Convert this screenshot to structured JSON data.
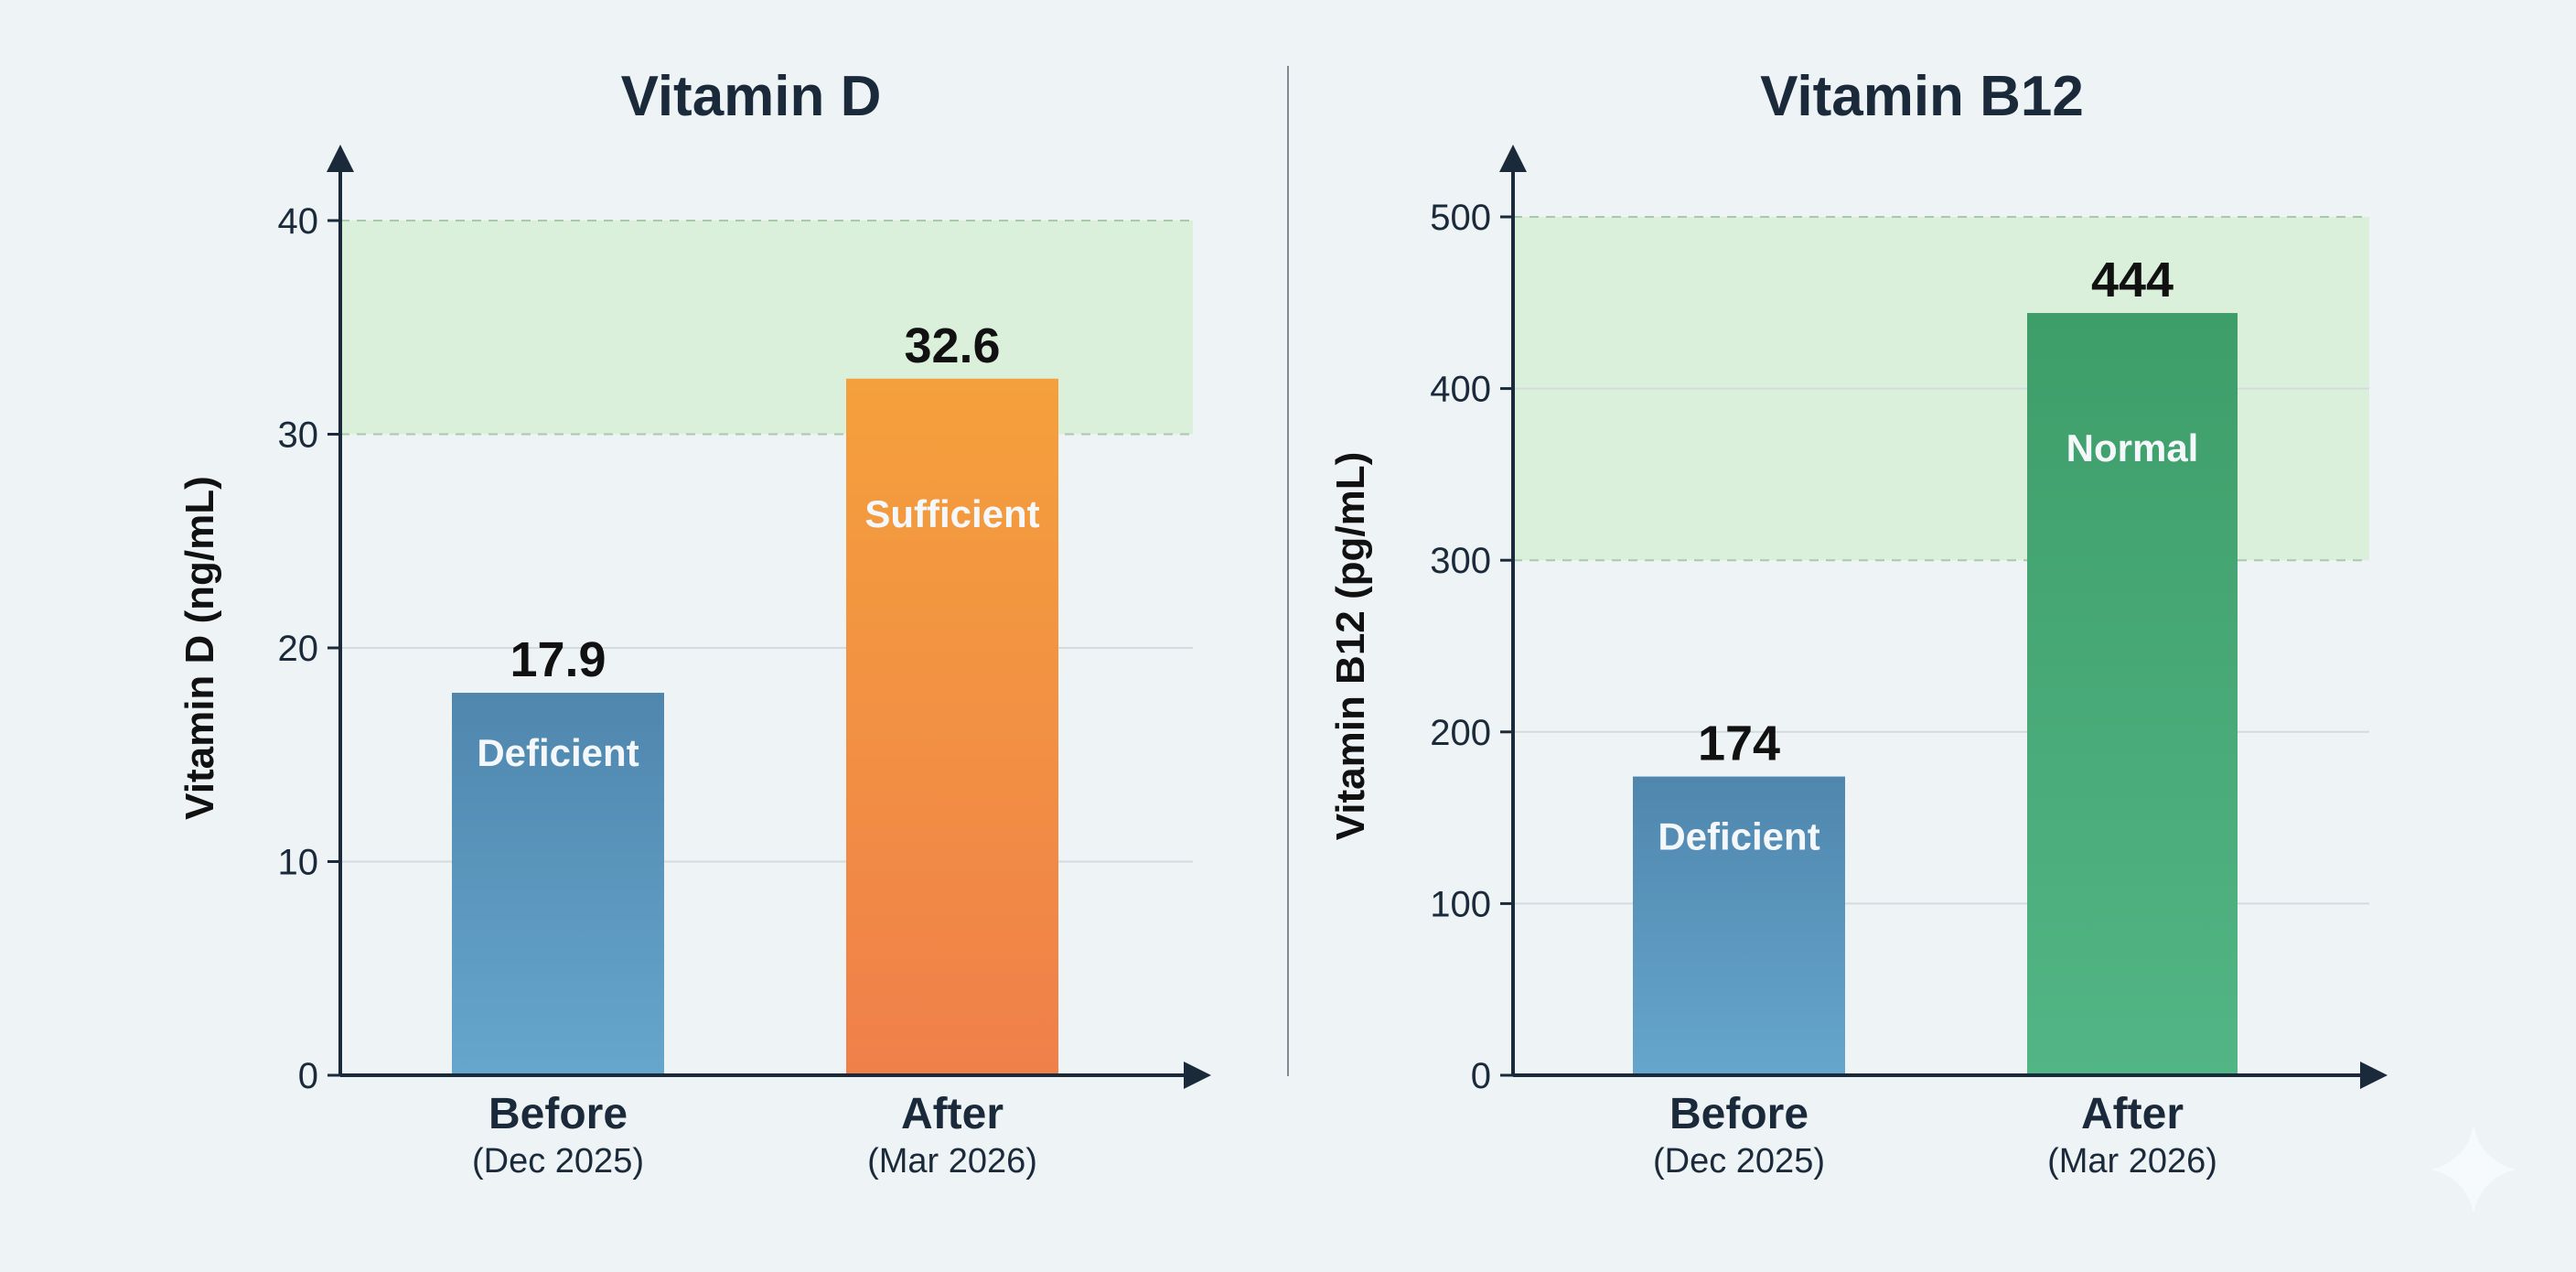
{
  "chart_data": [
    {
      "type": "bar",
      "title": "Vitamin D",
      "ylabel": "Vitamin D (ng/mL)",
      "xlabel": "",
      "ylim": [
        0,
        40
      ],
      "yticks": [
        0,
        10,
        20,
        30,
        40
      ],
      "grid": true,
      "reference_band": {
        "range": [
          30,
          40
        ],
        "color": "#d6efd6"
      },
      "categories": [
        "Before",
        "After"
      ],
      "category_sublabels": [
        "(Dec 2025)",
        "(Mar 2026)"
      ],
      "values": [
        17.9,
        32.6
      ],
      "value_labels": [
        "17.9",
        "32.6"
      ],
      "bar_labels": [
        "Deficient",
        "Sufficient"
      ],
      "bar_colors": [
        [
          "#4f86ae",
          "#66a6cc"
        ],
        [
          "#f4a03c",
          "#f0804a"
        ]
      ]
    },
    {
      "type": "bar",
      "title": "Vitamin B12",
      "ylabel": "Vitamin B12 (pg/mL)",
      "xlabel": "",
      "ylim": [
        0,
        500
      ],
      "yticks": [
        0,
        100,
        200,
        300,
        400,
        500
      ],
      "grid": true,
      "reference_band": {
        "range": [
          300,
          500
        ],
        "color": "#d6efd6"
      },
      "categories": [
        "Before",
        "After"
      ],
      "category_sublabels": [
        "(Dec 2025)",
        "(Mar 2026)"
      ],
      "values": [
        174,
        444
      ],
      "value_labels": [
        "174",
        "444"
      ],
      "bar_labels": [
        "Deficient",
        "Normal"
      ],
      "bar_colors": [
        [
          "#4f86ae",
          "#66a6cc"
        ],
        [
          "#3e9e6a",
          "#52b585"
        ]
      ]
    }
  ],
  "colors": {
    "axis": "#1b2a3a",
    "text": "#1b2a3a",
    "grid": "#d3dbe0",
    "background": "#eef3f6"
  },
  "icons": {
    "watermark": "sparkle-icon"
  }
}
